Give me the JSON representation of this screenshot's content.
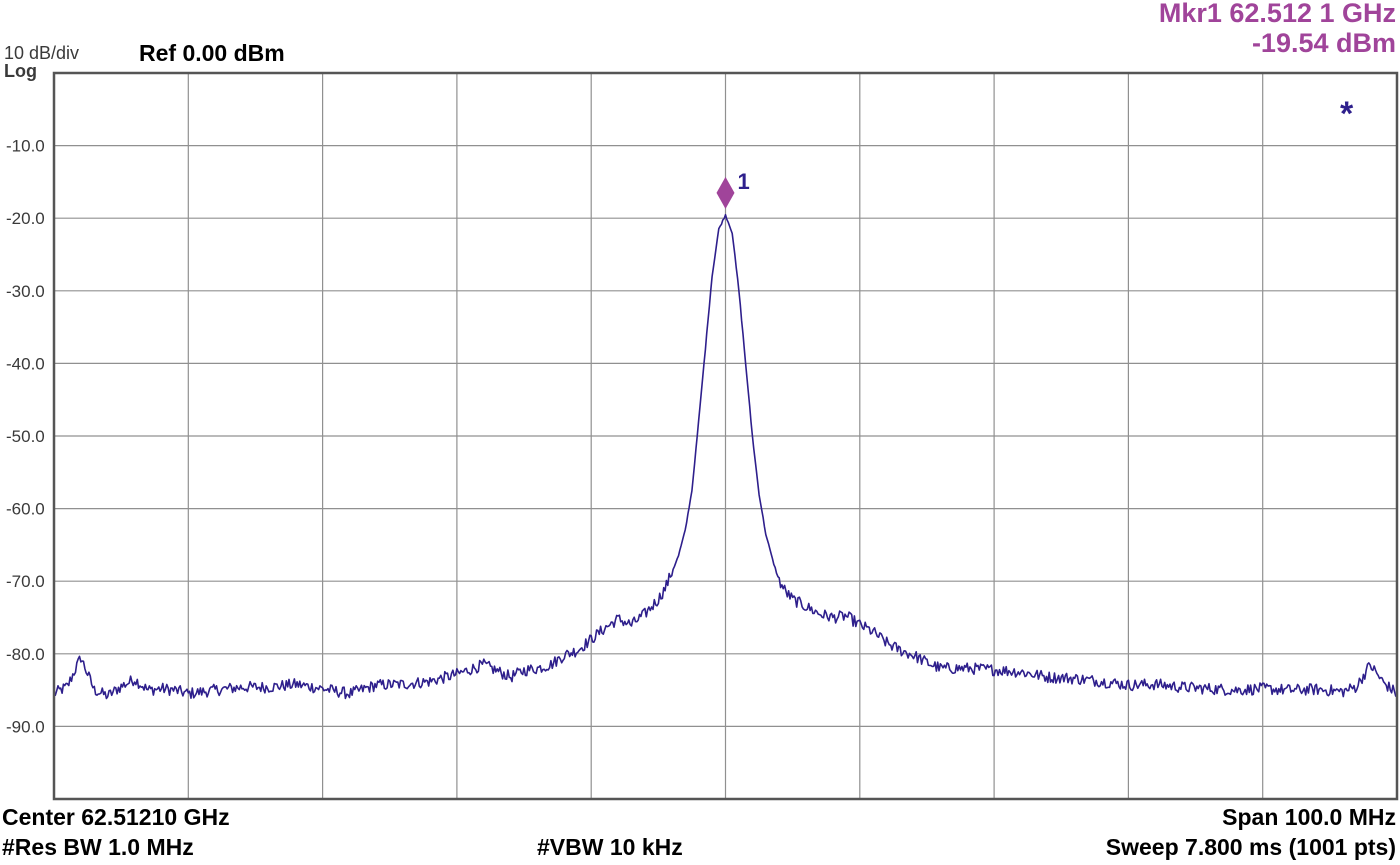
{
  "header": {
    "scale_label": "10 dB/div",
    "scale_type": "Log",
    "ref_level": "Ref 0.00 dBm",
    "marker_frequency": "Mkr1 62.512 1 GHz",
    "marker_amplitude": "-19.54 dBm",
    "marker_number": "1",
    "annotation_symbol": "*"
  },
  "footer": {
    "center": "Center 62.51210 GHz",
    "res_bw": "#Res BW 1.0 MHz",
    "vbw": "#VBW 10 kHz",
    "span": "Span 100.0 MHz",
    "sweep": "Sweep  7.800 ms (1001 pts)"
  },
  "colors": {
    "trace": "#2e1f8c",
    "marker": "#a0449a",
    "grid": "#909090",
    "frame": "#555555",
    "annotation": "#2e1f8c"
  },
  "chart_data": {
    "type": "line",
    "title": "",
    "xlabel": "",
    "ylabel": "",
    "x_unit": "MHz offset from center",
    "xlim": [
      -50,
      50
    ],
    "ylim": [
      -100,
      0
    ],
    "grid": true,
    "ytick_values": [
      -10,
      -20,
      -30,
      -40,
      -50,
      -60,
      -70,
      -80,
      -90
    ],
    "ytick_labels": [
      "-10.0",
      "-20.0",
      "-30.0",
      "-40.0",
      "-50.0",
      "-60.0",
      "-70.0",
      "-80.0",
      "-90.0"
    ],
    "series": [
      {
        "x": [
          -50,
          -49,
          -48,
          -47,
          -46,
          -45,
          -44,
          -43,
          -42,
          -41,
          -40,
          -38,
          -36,
          -34,
          -32,
          -30,
          -28,
          -26,
          -24,
          -22,
          -20,
          -18,
          -16,
          -15,
          -14,
          -13,
          -12,
          -11,
          -10,
          -9,
          -8,
          -7,
          -6,
          -5,
          -4.5,
          -4,
          -3.5,
          -3,
          -2.5,
          -2,
          -1.5,
          -1,
          -0.5,
          0,
          0.5,
          1,
          1.5,
          2,
          2.5,
          3,
          3.5,
          4,
          4.5,
          5,
          6,
          7,
          8,
          9,
          10,
          11,
          12,
          13,
          14,
          15,
          16,
          18,
          20,
          22,
          24,
          26,
          28,
          30,
          32,
          34,
          36,
          38,
          40,
          42,
          44,
          46,
          47,
          48,
          49,
          50
        ],
        "y": [
          -85.5,
          -84.5,
          -80.5,
          -85,
          -85.8,
          -84.5,
          -83.5,
          -85,
          -84.8,
          -85,
          -85.5,
          -85,
          -84.6,
          -84.6,
          -84.2,
          -84.8,
          -85.5,
          -84.3,
          -84.2,
          -83.8,
          -82.8,
          -81.5,
          -83.2,
          -82.3,
          -82,
          -81.5,
          -80.2,
          -79.5,
          -78,
          -76.5,
          -75.2,
          -76,
          -74.5,
          -72.5,
          -71,
          -68.8,
          -66.5,
          -63,
          -57.5,
          -48,
          -38,
          -28,
          -21.5,
          -19.54,
          -22,
          -30,
          -40,
          -50,
          -58,
          -63.5,
          -67,
          -70,
          -71.5,
          -72.5,
          -73.5,
          -74.5,
          -75,
          -74.8,
          -76,
          -77,
          -78.5,
          -79.5,
          -80.2,
          -81.2,
          -82,
          -82,
          -82.2,
          -82.5,
          -83.2,
          -83.4,
          -83.8,
          -84.3,
          -84.2,
          -84.6,
          -84.8,
          -85,
          -84.8,
          -85,
          -84.9,
          -85.2,
          -84.5,
          -81.5,
          -84,
          -85.5
        ]
      }
    ],
    "marker": {
      "label": "1",
      "x": 0,
      "y": -19.54
    }
  }
}
